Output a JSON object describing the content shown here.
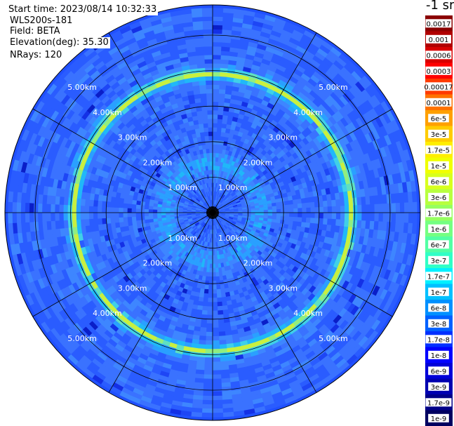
{
  "header": {
    "start_time": "Start time: 2023/08/14 10:32:33",
    "instrument": "WLS200s-181",
    "field": "Field: BETA",
    "elevation": "Elevation(deg): 35.30",
    "nrays": "NRays: 120"
  },
  "colorbar": {
    "title": "-1 sr",
    "labels": [
      "0.0017",
      "0.001",
      "0.0006",
      "0.0003",
      "0.00017",
      "0.0001",
      "6e-5",
      "3e-5",
      "1.7e-5",
      "1e-5",
      "6e-6",
      "3e-6",
      "1.7e-6",
      "1e-6",
      "6e-7",
      "3e-7",
      "1.7e-7",
      "1e-7",
      "6e-8",
      "3e-8",
      "1.7e-8",
      "1e-8",
      "6e-9",
      "3e-9",
      "1.7e-9",
      "1e-9"
    ],
    "colors": [
      "#8b0000",
      "#b00000",
      "#d80000",
      "#ff0000",
      "#ff3a00",
      "#ff7200",
      "#ffa000",
      "#ffcc00",
      "#ffee00",
      "#f0ff00",
      "#d8ff1e",
      "#b8ff3f",
      "#96ff60",
      "#74ff82",
      "#52ffa4",
      "#30ffc6",
      "#00f0ff",
      "#00c0ff",
      "#0090ff",
      "#0060ff",
      "#0030ff",
      "#0000ff",
      "#0000d8",
      "#0000b0",
      "#000088",
      "#000060"
    ]
  },
  "chart_data": {
    "type": "heatmap",
    "projection": "polar (PPI scan)",
    "field": "BETA",
    "units": "sr-1",
    "elevation_deg": 35.3,
    "nrays": 120,
    "range_rings_km": [
      1.0,
      2.0,
      3.0,
      4.0,
      5.0
    ],
    "ring_labels": [
      "1.00km",
      "2.00km",
      "3.00km",
      "4.00km",
      "5.00km"
    ],
    "max_range_km": 5.85,
    "spokes_deg": [
      0,
      30,
      60,
      90,
      120,
      150,
      180,
      210,
      240,
      270,
      300,
      330
    ],
    "background_level": "1e-8",
    "features": [
      {
        "name": "inner ring",
        "range_km": 1.3,
        "level": "1.7e-8"
      },
      {
        "name": "aerosol layer ring",
        "range_km": 3.85,
        "level": "1.7e-6"
      }
    ]
  }
}
